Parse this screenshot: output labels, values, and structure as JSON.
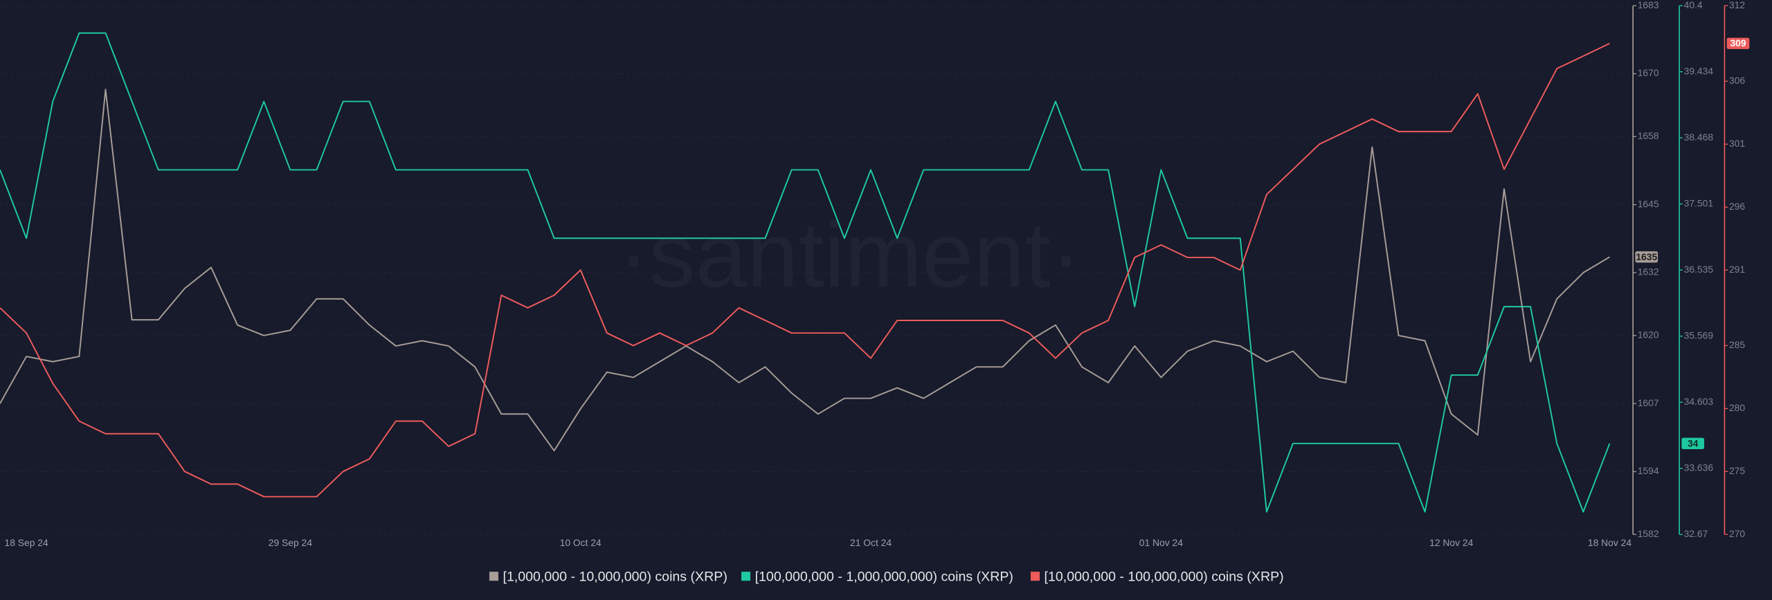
{
  "chart_data": {
    "type": "line",
    "watermark": "·santiment·",
    "categories": [
      null,
      "18 Sep 24",
      null,
      null,
      null,
      null,
      null,
      null,
      null,
      null,
      null,
      "29 Sep 24",
      null,
      null,
      null,
      null,
      null,
      null,
      null,
      null,
      null,
      null,
      "10 Oct 24",
      null,
      null,
      null,
      null,
      null,
      null,
      null,
      null,
      null,
      null,
      "21 Oct 24",
      null,
      null,
      null,
      null,
      null,
      null,
      null,
      null,
      null,
      null,
      "01 Nov 24",
      null,
      null,
      null,
      null,
      null,
      null,
      null,
      null,
      null,
      null,
      "12 Nov 24",
      null,
      null,
      null,
      null,
      null,
      "18 Nov 24"
    ],
    "series": [
      {
        "name": "[1,000,000 - 10,000,000) coins (XRP)",
        "color": "#a79d97",
        "axis": "y",
        "values": [
          1607,
          1616,
          1615,
          1616,
          1667,
          1623,
          1623,
          1629,
          1633,
          1622,
          1620,
          1621,
          1627,
          1627,
          1622,
          1618,
          1619,
          1618,
          1614,
          1605,
          1605,
          1598,
          1606,
          1613,
          1612,
          1615,
          1618,
          1615,
          1611,
          1614,
          1609,
          1605,
          1608,
          1608,
          1610,
          1608,
          1611,
          1614,
          1614,
          1619,
          1622,
          1614,
          1611,
          1618,
          1612,
          1617,
          1619,
          1618,
          1615,
          1617,
          1612,
          1611,
          1656,
          1620,
          1619,
          1605,
          1601,
          1648,
          1615,
          1627,
          1632,
          1635
        ]
      },
      {
        "name": "[100,000,000 - 1,000,000,000) coins (XRP)",
        "color": "#1fc9a0",
        "axis": "y2",
        "values": [
          38,
          37,
          39,
          40,
          40,
          39,
          38,
          38,
          38,
          38,
          39,
          38,
          38,
          39,
          39,
          38,
          38,
          38,
          38,
          38,
          38,
          37,
          37,
          37,
          37,
          37,
          37,
          37,
          37,
          37,
          38,
          38,
          37,
          38,
          37,
          38,
          38,
          38,
          38,
          38,
          39,
          38,
          38,
          36,
          38,
          37,
          37,
          37,
          33,
          34,
          34,
          34,
          34,
          34,
          33,
          35,
          35,
          36,
          36,
          34,
          33,
          34
        ]
      },
      {
        "name": "[10,000,000 - 100,000,000) coins (XRP)",
        "color": "#ef5b5b",
        "axis": "y3",
        "values": [
          288,
          286,
          282,
          279,
          278,
          278,
          278,
          275,
          274,
          274,
          273,
          273,
          273,
          275,
          276,
          279,
          279,
          277,
          278,
          289,
          288,
          289,
          291,
          286,
          285,
          286,
          285,
          286,
          288,
          287,
          286,
          286,
          286,
          284,
          287,
          287,
          287,
          287,
          287,
          286,
          284,
          286,
          287,
          292,
          293,
          292,
          292,
          291,
          297,
          299,
          301,
          302,
          303,
          302,
          302,
          302,
          305,
          299,
          303,
          307,
          308,
          309
        ]
      }
    ],
    "ylim": [
      1582,
      1683
    ],
    "yticks": [
      1582,
      1594,
      1607,
      1620,
      1632,
      1645,
      1658,
      1670,
      1683
    ],
    "y2lim": [
      32.67,
      40.4
    ],
    "y2ticks": [
      32.67,
      33.636,
      34.603,
      35.569,
      36.535,
      37.501,
      38.468,
      39.434,
      40.4
    ],
    "y3lim": [
      270,
      312
    ],
    "y3ticks": [
      270,
      275,
      280,
      285,
      291,
      296,
      301,
      306,
      312
    ],
    "grid": true,
    "legend": "bottom"
  }
}
